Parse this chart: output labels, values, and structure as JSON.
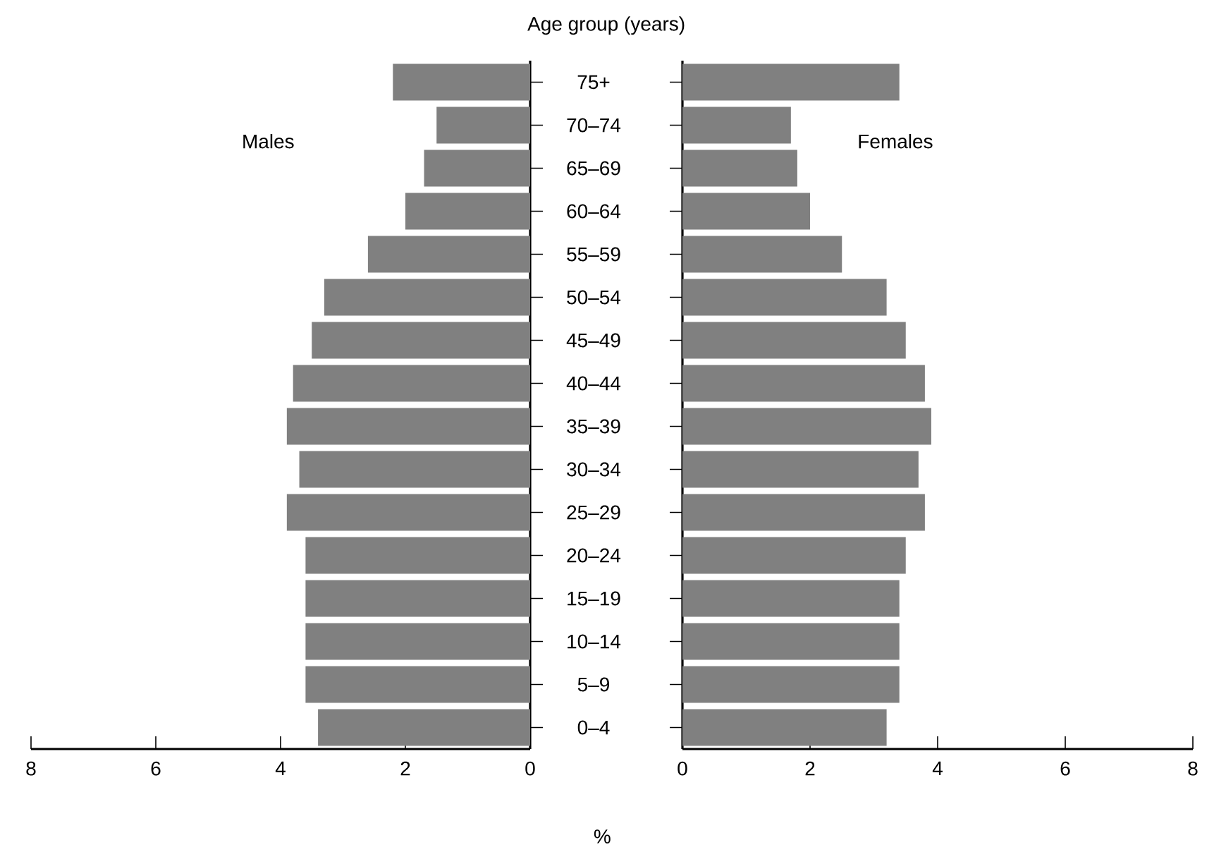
{
  "chart_data": [
    {
      "type": "bar",
      "orientation": "horizontal",
      "categories": [
        null,
        null,
        null,
        null,
        null,
        null,
        null,
        null,
        null,
        null,
        null,
        null,
        null,
        null,
        null,
        null
      ],
      "series": [
        {
          "name": "Males",
          "color": "#808080",
          "values": [
            2.2,
            1.5,
            1.7,
            2.0,
            2.6,
            3.3,
            3.5,
            3.8,
            3.9,
            3.7,
            3.9,
            3.6,
            3.6,
            3.6,
            3.6,
            3.4
          ]
        }
      ],
      "xlim": [
        8,
        0
      ],
      "xticks": [
        8,
        6,
        4,
        2,
        0
      ]
    },
    {
      "type": "bar",
      "orientation": "horizontal",
      "ylabel": "Age group (years)",
      "xlabel": "%",
      "categories": [
        "75+",
        "70–74",
        "65–69",
        "60–64",
        "55–59",
        "50–54",
        "45–49",
        "40–44",
        "35–39",
        "30–34",
        "25–29",
        "20–24",
        "15–19",
        "10–14",
        "5–9",
        "0–4"
      ],
      "series": [
        {
          "name": "Females",
          "color": "#808080",
          "values": [
            3.4,
            1.7,
            1.8,
            2.0,
            2.5,
            3.2,
            3.5,
            3.8,
            3.9,
            3.7,
            3.8,
            3.5,
            3.4,
            3.4,
            3.4,
            3.2
          ]
        }
      ],
      "xlim": [
        0,
        8
      ],
      "xticks": [
        0,
        2,
        4,
        6,
        8
      ]
    }
  ]
}
